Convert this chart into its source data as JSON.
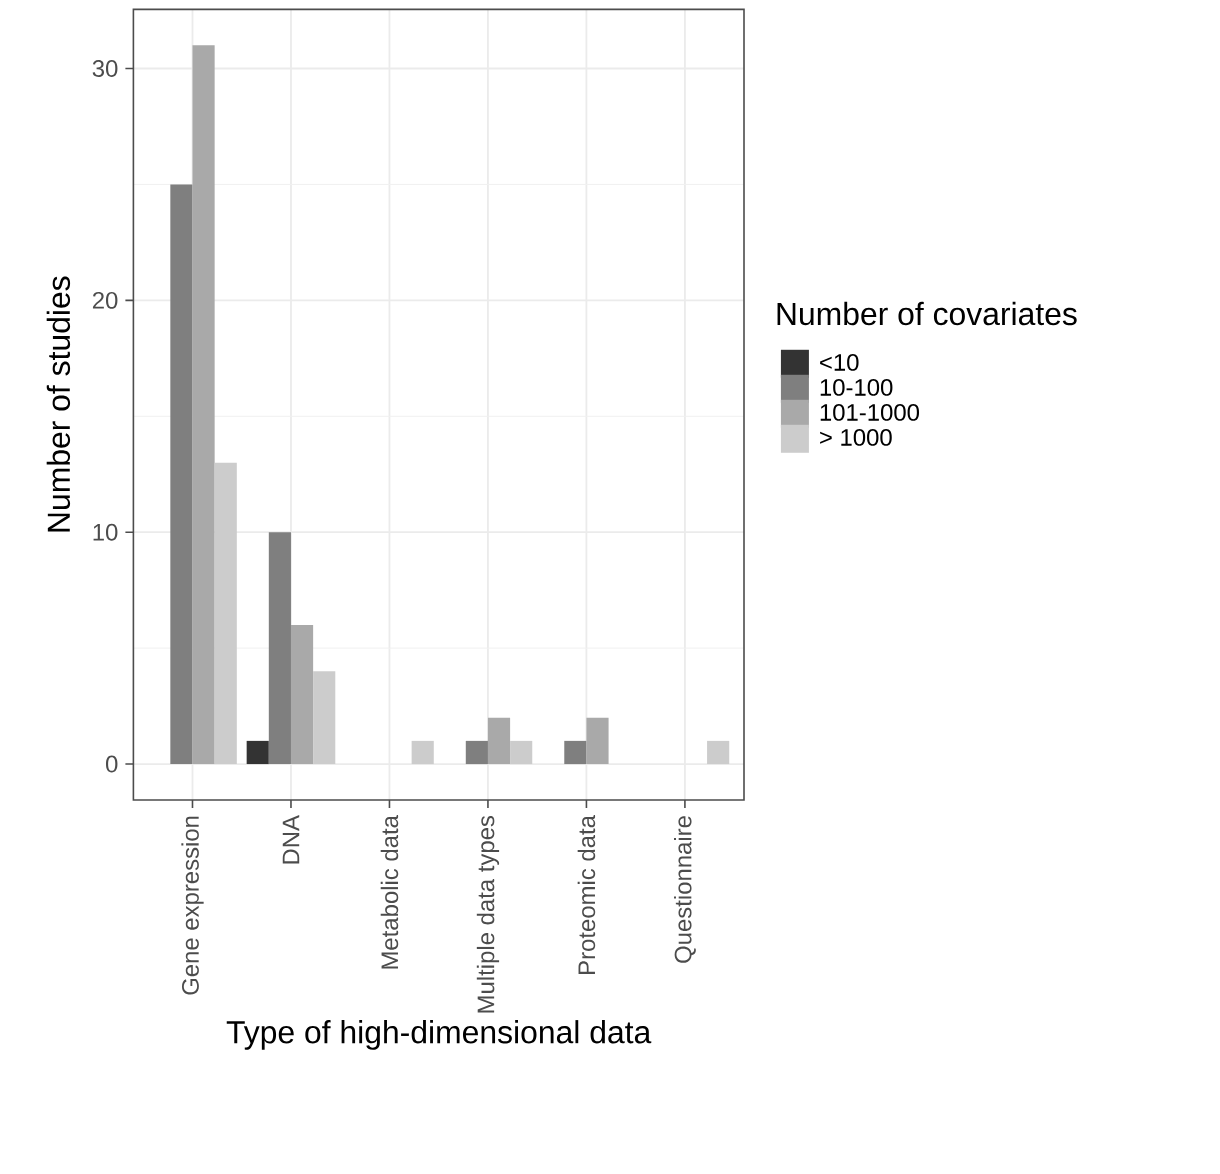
{
  "chart_data": {
    "type": "bar",
    "xlabel": "Type of high-dimensional data",
    "ylabel": "Number of studies",
    "legend_title": "Number of covariates",
    "categories": [
      "Gene expression",
      "DNA",
      "Metabolic data",
      "Multiple data types",
      "Proteomic data",
      "Questionnaire"
    ],
    "series": [
      {
        "name": "<10",
        "color": "#333333",
        "values": [
          null,
          1,
          null,
          null,
          null,
          null
        ]
      },
      {
        "name": "10-100",
        "color": "#7f7f7f",
        "values": [
          25,
          10,
          null,
          1,
          1,
          null
        ]
      },
      {
        "name": "101-1000",
        "color": "#a9a9a9",
        "values": [
          31,
          6,
          null,
          2,
          2,
          null
        ]
      },
      {
        "name": "> 1000",
        "color": "#cccccc",
        "values": [
          13,
          4,
          1,
          1,
          null,
          1
        ]
      }
    ],
    "ylim": [
      -1.55,
      32.55
    ],
    "yticks": [
      0,
      10,
      20,
      30
    ],
    "grid": true,
    "legend": "right"
  }
}
